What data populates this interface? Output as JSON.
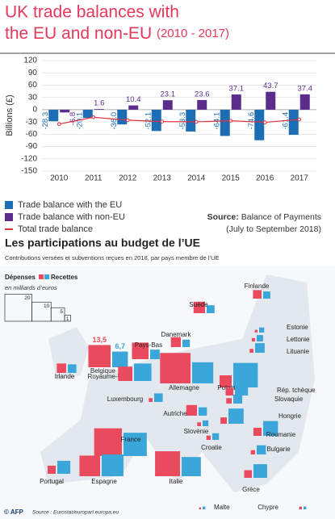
{
  "chart_data": [
    {
      "type": "bar",
      "title": [
        "UK trade balances with",
        "the EU and non-EU"
      ],
      "title_suffix": "(2010 - 2017)",
      "y_label": "Billions (£)",
      "categories": [
        "2010",
        "2011",
        "2012",
        "2013",
        "2014",
        "2015",
        "2016",
        "2017"
      ],
      "series": [
        {
          "name": "Trade balance with the EU",
          "color": "#1c6db4",
          "values": [
            -28.3,
            -20.1,
            -36.0,
            -52.1,
            -53.3,
            -64.1,
            -74.6,
            -61.4
          ],
          "value_labels": [
            "-28.3",
            "-20.1",
            "-36.0",
            "-52.1",
            "-53.3",
            "-64.1",
            "-74.6",
            "-61.4"
          ]
        },
        {
          "name": "Trade balance with non-EU",
          "color": "#5a2c8c",
          "values": [
            -6.8,
            1.6,
            10.4,
            23.1,
            23.6,
            37.1,
            43.7,
            37.4
          ],
          "value_labels": [
            "-6.8",
            "1.6",
            "10.4",
            "23.1",
            "23.6",
            "37.1",
            "43.7",
            "37.4"
          ]
        },
        {
          "name": "Total trade balance",
          "type": "line",
          "color": "#e0303a",
          "values": [
            -35.1,
            -18.5,
            -25.6,
            -29.0,
            -29.7,
            -27.0,
            -30.9,
            -24.0
          ]
        }
      ],
      "ylim": [
        -150,
        120
      ],
      "yticks": [
        -150,
        -120,
        -90,
        -60,
        -30,
        0,
        30,
        60,
        90,
        120
      ],
      "grid": true,
      "source_label": "Source:",
      "source": "Balance of Payments",
      "source_note": "(July to September 2018)"
    },
    {
      "type": "proportional-squares",
      "title": "Les participations au budget de l’UE",
      "subtitle": "Contributions versées et subventions reçues en 2018, par pays membre de l’UE",
      "unit": "en milliards d’euros",
      "series": [
        {
          "name": "Dépenses",
          "color": "#ea4a5e"
        },
        {
          "name": "Recettes",
          "color": "#3aa6d9"
        }
      ],
      "size_legend": [
        20,
        10,
        5,
        1
      ],
      "countries": [
        {
          "name": "Finlande",
          "values": [
            2.0,
            1.4
          ]
        },
        {
          "name": "Suède",
          "values": [
            3.6,
            1.7
          ]
        },
        {
          "name": "Danemark",
          "values": [
            2.7,
            1.5
          ]
        },
        {
          "name": "Pays-Bas",
          "values": [
            7.5,
            2.5
          ]
        },
        {
          "name": "Royaume-Uni",
          "values": [
            13.5,
            6.7
          ],
          "value_labels": [
            "13,5",
            "6,7"
          ]
        },
        {
          "name": "Irlande",
          "values": [
            2.4,
            2.0
          ]
        },
        {
          "name": "Belgique",
          "values": [
            5.6,
            8.3
          ]
        },
        {
          "name": "Allemagne",
          "values": [
            25.3,
            12.2
          ]
        },
        {
          "name": "Pologne",
          "values": [
            4.0,
            16.4
          ]
        },
        {
          "name": "Luxembourg",
          "values": [
            0.4,
            2.0
          ]
        },
        {
          "name": "Estonie",
          "values": [
            0.2,
            0.7
          ]
        },
        {
          "name": "Lettonie",
          "values": [
            0.3,
            1.1
          ]
        },
        {
          "name": "Lituanie",
          "values": [
            0.4,
            2.5
          ]
        },
        {
          "name": "Rép. tchèque",
          "values": [
            1.6,
            4.7
          ]
        },
        {
          "name": "Slovaquie",
          "values": [
            0.8,
            2.2
          ]
        },
        {
          "name": "Hongrie",
          "values": [
            1.1,
            6.3
          ]
        },
        {
          "name": "Autriche",
          "values": [
            3.1,
            1.9
          ]
        },
        {
          "name": "Slovénie",
          "values": [
            0.4,
            0.9
          ]
        },
        {
          "name": "Croatie",
          "values": [
            0.5,
            1.2
          ]
        },
        {
          "name": "Roumanie",
          "values": [
            1.8,
            6.0
          ]
        },
        {
          "name": "Bulgarie",
          "values": [
            0.5,
            2.3
          ]
        },
        {
          "name": "France",
          "values": [
            21.0,
            14.8
          ]
        },
        {
          "name": "Italie",
          "values": [
            17.0,
            10.1
          ]
        },
        {
          "name": "Espagne",
          "values": [
            11.6,
            12.9
          ]
        },
        {
          "name": "Portugal",
          "values": [
            1.8,
            4.6
          ]
        },
        {
          "name": "Grèce",
          "values": [
            1.6,
            5.1
          ]
        },
        {
          "name": "Malte",
          "values": [
            0.1,
            0.2
          ]
        },
        {
          "name": "Chypre",
          "values": [
            0.2,
            0.2
          ]
        }
      ],
      "source": "Source : Eurostat/europarl.europa.eu",
      "credit": "© AFP"
    }
  ]
}
